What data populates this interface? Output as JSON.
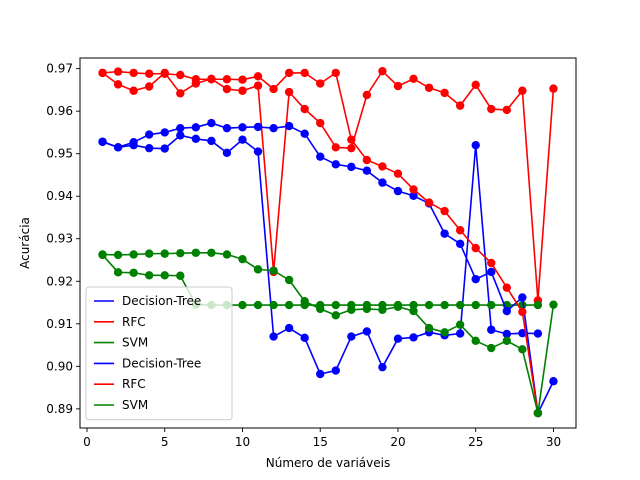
{
  "chart_data": {
    "type": "line",
    "xlabel": "Número de variáveis",
    "ylabel": "Acurácia",
    "xlim": [
      -0.45,
      31.45
    ],
    "ylim": [
      0.8855,
      0.9725
    ],
    "xticks": [
      0,
      5,
      10,
      15,
      20,
      25,
      30
    ],
    "yticks": [
      0.89,
      0.9,
      0.91,
      0.92,
      0.93,
      0.94,
      0.95,
      0.96,
      0.97
    ],
    "ytick_labels": [
      "0.89",
      "0.90",
      "0.91",
      "0.92",
      "0.93",
      "0.94",
      "0.95",
      "0.96",
      "0.97"
    ],
    "grid": false,
    "legend_position": "lower-left",
    "series": [
      {
        "name": "Decision-Tree",
        "color": "#0000ff",
        "x": [
          1,
          2,
          3,
          4,
          5,
          6,
          7,
          8,
          9,
          10,
          11,
          12,
          13,
          14,
          15,
          16,
          17,
          18,
          19,
          20,
          21,
          22,
          23,
          24,
          25,
          26,
          27,
          28,
          29
        ],
        "y": [
          0.9528,
          0.9515,
          0.952,
          0.9513,
          0.9512,
          0.9543,
          0.9535,
          0.953,
          0.9502,
          0.9533,
          0.9505,
          0.907,
          0.909,
          0.9067,
          0.8982,
          0.899,
          0.907,
          0.9082,
          0.8998,
          0.9065,
          0.9068,
          0.908,
          0.9073,
          0.9077,
          0.952,
          0.9086,
          0.9076,
          0.9078,
          0.9077
        ]
      },
      {
        "name": "RFC",
        "color": "#ff0000",
        "x": [
          1,
          2,
          3,
          4,
          5,
          6,
          7,
          8,
          9,
          10,
          11,
          12,
          13,
          14,
          15,
          16,
          17,
          18,
          19,
          20,
          21,
          22,
          23,
          24,
          25,
          26,
          27,
          28,
          29,
          30
        ],
        "y": [
          0.969,
          0.9663,
          0.9648,
          0.9658,
          0.969,
          0.9642,
          0.9665,
          0.9676,
          0.9652,
          0.9648,
          0.966,
          0.9222,
          0.9645,
          0.9605,
          0.9572,
          0.9515,
          0.9513,
          0.9638,
          0.9694,
          0.9659,
          0.9676,
          0.9655,
          0.9643,
          0.9613,
          0.9662,
          0.9605,
          0.9603,
          0.9648,
          0.9155,
          0.9653
        ]
      },
      {
        "name": "SVM",
        "color": "#008000",
        "x": [
          1,
          2,
          3,
          4,
          5,
          6,
          7,
          8,
          9,
          10,
          11,
          12,
          13,
          14,
          15,
          16,
          17,
          18,
          19,
          20,
          21,
          22,
          23,
          24,
          25,
          26,
          27,
          28,
          29
        ],
        "y": [
          0.9262,
          0.9221,
          0.922,
          0.9214,
          0.9214,
          0.9213,
          0.9145,
          0.9144,
          0.9144,
          0.9144,
          0.9144,
          0.9144,
          0.9144,
          0.9144,
          0.9144,
          0.9144,
          0.9144,
          0.9144,
          0.9144,
          0.9144,
          0.9144,
          0.9144,
          0.9144,
          0.9144,
          0.9144,
          0.9144,
          0.9144,
          0.9144,
          0.9144
        ]
      },
      {
        "name": "Decision-Tree",
        "color": "#0000ff",
        "x": [
          1,
          2,
          3,
          4,
          5,
          6,
          7,
          8,
          9,
          10,
          11,
          12,
          13,
          14,
          15,
          16,
          17,
          18,
          19,
          20,
          21,
          22,
          23,
          24,
          25,
          26,
          27,
          28,
          29,
          30
        ],
        "y": [
          0.9528,
          0.9515,
          0.9527,
          0.9545,
          0.955,
          0.956,
          0.9562,
          0.9572,
          0.956,
          0.9562,
          0.9563,
          0.956,
          0.9565,
          0.9547,
          0.9493,
          0.9475,
          0.9469,
          0.946,
          0.9432,
          0.9412,
          0.9401,
          0.9383,
          0.9312,
          0.9288,
          0.9205,
          0.9222,
          0.913,
          0.9162,
          0.889,
          0.8965
        ]
      },
      {
        "name": "RFC",
        "color": "#ff0000",
        "x": [
          1,
          2,
          3,
          4,
          5,
          6,
          7,
          8,
          9,
          10,
          11,
          12,
          13,
          14,
          15,
          16,
          17,
          18,
          19,
          20,
          21,
          22,
          23,
          24,
          25,
          26,
          27,
          28,
          29
        ],
        "y": [
          0.969,
          0.9693,
          0.969,
          0.9688,
          0.9688,
          0.9685,
          0.9675,
          0.9675,
          0.9675,
          0.9674,
          0.9682,
          0.9652,
          0.969,
          0.969,
          0.9665,
          0.969,
          0.9533,
          0.9485,
          0.947,
          0.9453,
          0.9416,
          0.9385,
          0.9365,
          0.932,
          0.9278,
          0.9243,
          0.9185,
          0.9128,
          0.889
        ]
      },
      {
        "name": "SVM",
        "color": "#008000",
        "x": [
          1,
          2,
          3,
          4,
          5,
          6,
          7,
          8,
          9,
          10,
          11,
          12,
          13,
          14,
          15,
          16,
          17,
          18,
          19,
          20,
          21,
          22,
          23,
          24,
          25,
          26,
          27,
          28,
          29,
          30
        ],
        "y": [
          0.9263,
          0.9262,
          0.9263,
          0.9265,
          0.9265,
          0.9266,
          0.9267,
          0.9267,
          0.9263,
          0.9252,
          0.9228,
          0.9225,
          0.9203,
          0.9153,
          0.9135,
          0.912,
          0.9133,
          0.9135,
          0.9133,
          0.914,
          0.913,
          0.909,
          0.908,
          0.9098,
          0.906,
          0.9043,
          0.906,
          0.904,
          0.889,
          0.9145
        ]
      }
    ]
  }
}
